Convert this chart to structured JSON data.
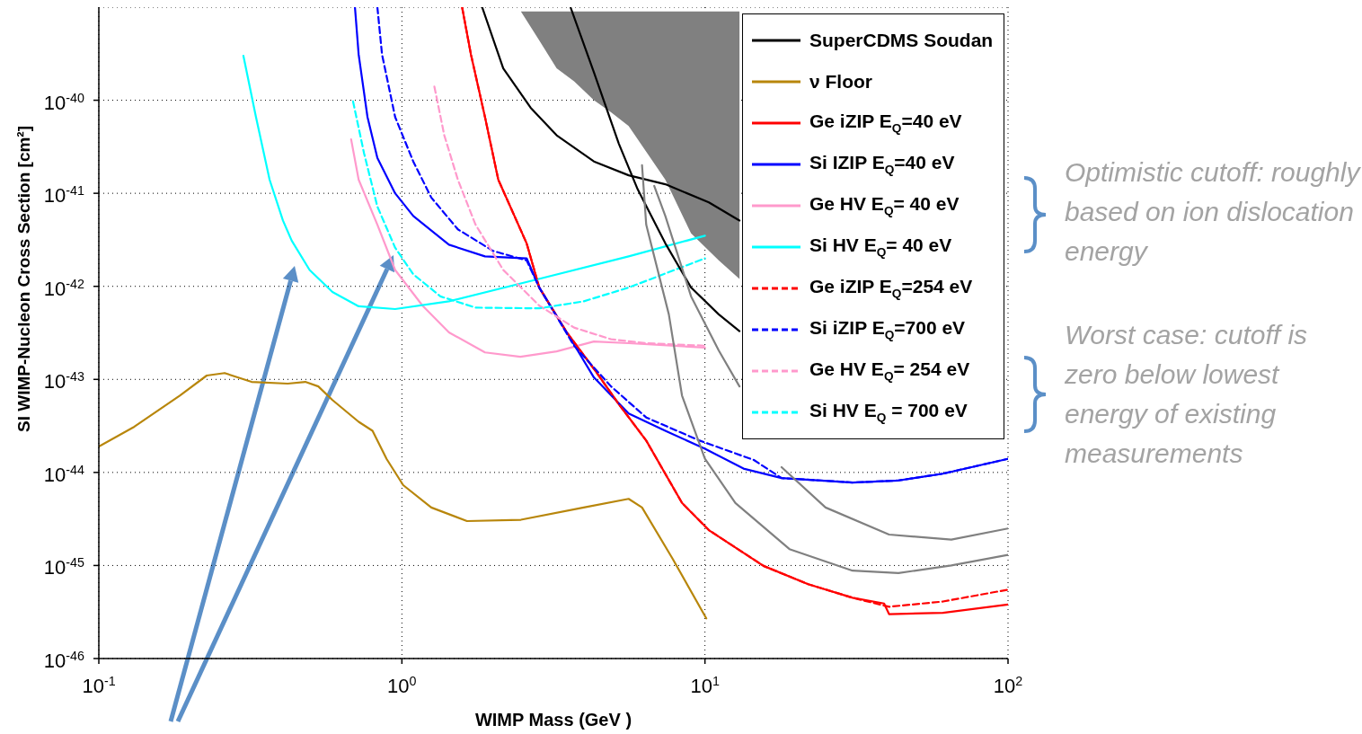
{
  "chart_data": {
    "type": "line",
    "xlabel": "WIMP Mass (GeV )",
    "ylabel": "SI WIMP-Nucleon Cross Section [cm²]",
    "log": "xy",
    "grid": true,
    "legend": "top right",
    "xlim": [
      0.1,
      100
    ],
    "xticks": [
      {
        "value": 0.1,
        "label": "10$^{-1}$"
      },
      {
        "value": 1,
        "label": "10$^{0}$"
      },
      {
        "value": 10,
        "label": "10$^{1}$"
      },
      {
        "value": 100,
        "label": "10$^{2}$"
      }
    ],
    "ylim": [
      1e-46,
      1e-39
    ],
    "yticks": [
      {
        "value": 1e-46,
        "label": "10$^{-46}$"
      },
      {
        "value": 1e-45,
        "label": "10$^{-45}$"
      },
      {
        "value": 1e-44,
        "label": "10$^{-44}$"
      },
      {
        "value": 1e-43,
        "label": "10$^{-43}$"
      },
      {
        "value": 1e-42,
        "label": "10$^{-42}$"
      },
      {
        "value": 1e-41,
        "label": "10$^{-41}$"
      },
      {
        "value": 1e-40,
        "label": "10$^{-40}$"
      }
    ],
    "series": [
      {
        "type": "line",
        "color": "#808080",
        "x": [
          2.47,
          2.84,
          3.24,
          3.7,
          4.3,
          4.9,
          5.6,
          7.4,
          9,
          11.1,
          13
        ],
        "values": [
          null,
          null,
          null,
          null,
          null,
          null,
          null,
          null,
          null,
          null,
          null
        ],
        "lower": [
          9e-40,
          4.4e-40,
          2.2e-40,
          1.6e-40,
          1e-40,
          7.4e-41,
          5.3e-41,
          1.4e-41,
          3.7e-42,
          1.9e-42,
          1.2e-42
        ],
        "upper": [
          9e-40,
          9e-40,
          9e-40,
          9e-40,
          9e-40,
          9e-40,
          9e-40,
          9e-40,
          9e-40,
          9e-40,
          9e-40
        ]
      },
      {
        "name": "SuperCDMS Soudan",
        "color": "#000000",
        "line_style": "solid",
        "x": [
          1.84,
          2.16,
          2.66,
          3.24,
          4.3,
          5.6,
          7.4,
          10.3,
          13
        ],
        "values": [
          1e-39,
          2.2e-40,
          8.3e-41,
          4.2e-41,
          2.2e-41,
          1.56e-41,
          1.25e-41,
          8e-42,
          5.1e-42
        ]
      },
      {
        "name": "ν Floor",
        "color": "#b8860b",
        "line_style": "solid",
        "x": [
          0.1,
          0.131,
          0.185,
          0.227,
          0.26,
          0.319,
          0.42,
          0.48,
          0.53,
          0.59,
          0.72,
          0.8,
          0.89,
          1.01,
          1.25,
          1.64,
          2.47,
          3.98,
          5.6,
          6.2,
          7.8,
          10.1
        ],
        "values": [
          1.9e-44,
          3.1e-44,
          6.7e-44,
          1.1e-43,
          1.17e-43,
          9.4e-44,
          9e-44,
          9.4e-44,
          8.4e-44,
          6e-44,
          3.5e-44,
          2.8e-44,
          1.4e-44,
          7.3e-45,
          4.2e-45,
          3e-45,
          3.1e-45,
          4.2e-45,
          5.2e-45,
          4.2e-45,
          1.2e-45,
          2.7e-46
        ]
      },
      {
        "name": "Ge iZIP E$_{Q}$=40 eV",
        "color": "#ff0000",
        "line_style": "solid",
        "x": [
          1.58,
          1.69,
          1.88,
          2.08,
          2.58,
          2.84,
          3.5,
          4.3,
          5.2,
          6.4,
          8.4,
          10.3,
          15.6,
          21.9,
          30.7,
          39,
          40.5,
          61,
          100
        ],
        "values": [
          1e-39,
          3.1e-40,
          6.6e-41,
          1.4e-41,
          2.9e-42,
          9.7e-43,
          3.2e-43,
          1.3e-43,
          5.4e-44,
          2.2e-44,
          4.7e-45,
          2.4e-45,
          9.9e-46,
          6.3e-46,
          4.5e-46,
          3.9e-46,
          3e-46,
          3.1e-46,
          3.8e-46
        ]
      },
      {
        "name": "Si IZIP E$_{Q}$=40 eV",
        "color": "#0000ff",
        "line_style": "solid",
        "x": [
          0.7,
          0.72,
          0.77,
          0.83,
          0.95,
          1.09,
          1.43,
          1.88,
          2.58,
          2.84,
          3.5,
          4.3,
          5.6,
          7.4,
          10,
          13.4,
          17.9,
          30.7,
          43.5,
          61,
          100
        ],
        "values": [
          1e-39,
          3.1e-40,
          6.6e-41,
          2.4e-41,
          1e-41,
          5.7e-42,
          2.8e-42,
          2.1e-42,
          2e-42,
          9.7e-43,
          3.2e-43,
          1.05e-43,
          4.3e-44,
          2.8e-44,
          1.8e-44,
          1.1e-44,
          8.7e-45,
          7.8e-45,
          8.2e-45,
          9.7e-45,
          1.4e-44
        ]
      },
      {
        "name": "Ge HV E$_{Q}$= 40 eV",
        "color": "#ff99cc",
        "line_style": "solid",
        "x": [
          0.68,
          0.72,
          0.83,
          0.95,
          1.17,
          1.43,
          1.88,
          2.46,
          3.24,
          4.3,
          5.6,
          10
        ],
        "values": [
          3.8e-41,
          1.4e-41,
          4.6e-42,
          1.5e-42,
          6.2e-43,
          3.2e-43,
          1.95e-43,
          1.75e-43,
          2e-43,
          2.55e-43,
          2.45e-43,
          2.2e-43
        ]
      },
      {
        "name": "Si HV E$_{Q}$= 40 eV",
        "color": "#00ffff",
        "line_style": "solid",
        "x": [
          0.3,
          0.33,
          0.366,
          0.405,
          0.433,
          0.496,
          0.59,
          0.72,
          0.95,
          1.43,
          2.83,
          5.6,
          10
        ],
        "values": [
          3e-40,
          6.6e-41,
          1.4e-41,
          5.1e-42,
          3.1e-42,
          1.5e-42,
          8.7e-43,
          6.1e-43,
          5.7e-43,
          6.9e-43,
          1.2e-42,
          2.1e-42,
          3.5e-42
        ]
      },
      {
        "name": "Ge iZIP E$_{Q}$=254 eV",
        "color": "#ff0000",
        "line_style": "dashed",
        "x": [
          1.58,
          1.69,
          1.88,
          2.08,
          2.58,
          2.84,
          3.5,
          4.3,
          5.2,
          6.4,
          8.4,
          10.3,
          15.6,
          21.9,
          30.7,
          40.5,
          61,
          100
        ],
        "values": [
          1e-39,
          3.1e-40,
          6.6e-41,
          1.4e-41,
          2.9e-42,
          9.7e-43,
          3.2e-43,
          1.3e-43,
          5.4e-44,
          2.2e-44,
          4.7e-45,
          2.4e-45,
          9.9e-46,
          6.3e-46,
          4.5e-46,
          3.6e-46,
          4.1e-46,
          5.5e-46
        ]
      },
      {
        "name": "Si iZIP E$_{Q}$=700 eV",
        "color": "#0000ff",
        "line_style": "dashed",
        "x": [
          0.83,
          0.86,
          0.95,
          1.09,
          1.25,
          1.53,
          2,
          2.58,
          2.84,
          3.7,
          4.9,
          6.4,
          9.6,
          14.5,
          17.9,
          30.7,
          43.5,
          61,
          100
        ],
        "values": [
          1e-39,
          3.1e-40,
          6.6e-41,
          2.2e-41,
          9e-42,
          4.1e-42,
          2.4e-42,
          1.9e-42,
          9.7e-43,
          2.3e-43,
          8.4e-44,
          3.9e-44,
          2.2e-44,
          1.36e-44,
          8.7e-45,
          7.8e-45,
          8.2e-45,
          9.7e-45,
          1.4e-44
        ]
      },
      {
        "name": "Ge HV E$_{Q}$= 254 eV",
        "color": "#ff99cc",
        "line_style": "dashed",
        "x": [
          1.28,
          1.38,
          1.53,
          1.75,
          2.16,
          2.84,
          3.7,
          4.9,
          6.4,
          10
        ],
        "values": [
          1.4e-40,
          4.2e-41,
          1.4e-41,
          4.6e-42,
          1.5e-42,
          6.2e-43,
          3.6e-43,
          2.7e-43,
          2.45e-43,
          2.3e-43
        ]
      },
      {
        "name": "Si HV E$_{Q}$ = 700 eV",
        "color": "#00ffff",
        "line_style": "dashed",
        "x": [
          0.69,
          0.75,
          0.83,
          0.95,
          1.09,
          1.34,
          1.75,
          2.84,
          3.98,
          5.6,
          10
        ],
        "values": [
          9.7e-41,
          2.7e-41,
          7.2e-42,
          2.6e-42,
          1.35e-42,
          7.8e-43,
          5.9e-43,
          5.8e-43,
          6.9e-43,
          9.7e-43,
          2e-42
        ]
      },
      {
        "color": "#000000",
        "line_style": "solid",
        "x": [
          3.6,
          4.3,
          5.2,
          6,
          7.4,
          9,
          11.1,
          13
        ],
        "values": [
          1e-39,
          2e-40,
          3.4e-41,
          1.1e-41,
          2.9e-42,
          9.7e-43,
          5e-43,
          3.3e-43
        ]
      },
      {
        "color": "#808080",
        "line_style": "solid",
        "x": [
          6.2,
          6.4,
          7.6,
          8.4,
          10,
          12.6,
          19,
          30.7,
          43.5,
          65,
          100
        ],
        "values": [
          2e-41,
          4.6e-42,
          5e-43,
          6.7e-44,
          1.4e-44,
          4.7e-45,
          1.5e-45,
          8.8e-46,
          8.3e-46,
          1e-45,
          1.3e-45
        ]
      },
      {
        "color": "#808080",
        "line_style": "solid",
        "x": [
          6.8,
          7.4,
          9,
          11.1,
          13,
          15,
          17.9,
          25,
          40.5,
          65,
          100
        ],
        "values": [
          1.2e-41,
          5.7e-42,
          7.8e-43,
          2.05e-43,
          8.4e-44,
          null,
          1.14e-44,
          4.2e-45,
          2.15e-45,
          1.9e-45,
          2.5e-45
        ]
      }
    ],
    "annotations": [
      "Optimistic cutoff: roughly based on ion dislocation energy",
      "Worst case: cutoff is zero below lowest energy of existing measurements"
    ]
  }
}
